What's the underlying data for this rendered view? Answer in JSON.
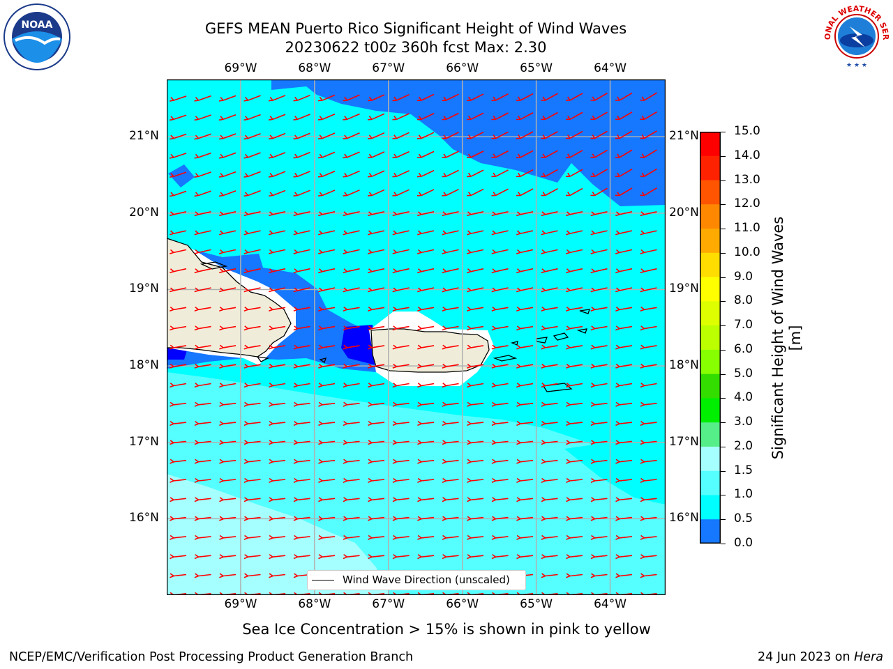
{
  "title": {
    "line1": "GEFS MEAN Puerto Rico Significant Height of Wind Waves",
    "line2": "20230622 t00z 360h fcst   Max: 2.30"
  },
  "logos": {
    "left": "noaa-logo",
    "left_text": "NOAA",
    "right": "national-weather-service-logo",
    "right_text": "NATIONAL WEATHER SERVICE"
  },
  "map": {
    "lon_labels": [
      "69°W",
      "68°W",
      "67°W",
      "66°W",
      "65°W",
      "64°W"
    ],
    "lat_labels": [
      "21°N",
      "20°N",
      "19°N",
      "18°N",
      "17°N",
      "16°N"
    ],
    "lon_range": [
      -70,
      -63.25
    ],
    "lat_range": [
      15,
      21.75
    ],
    "grid": true,
    "land_color": "#efedd9",
    "arrow_color": "#ff0000",
    "legend": {
      "label": "Wind Wave Direction (unscaled)",
      "placement": "lower-center"
    }
  },
  "colorbar": {
    "label": "Significant Height of Wind Waves [m]",
    "ticks": [
      "15.0",
      "14.0",
      "13.0",
      "12.0",
      "11.0",
      "10.0",
      "9.0",
      "8.0",
      "7.0",
      "6.0",
      "5.0",
      "4.0",
      "3.0",
      "2.0",
      "1.5",
      "1.0",
      "0.5",
      "0.0"
    ],
    "colors": [
      "#ff0000",
      "#ff2200",
      "#ff5500",
      "#ff8800",
      "#ffaa00",
      "#ffdd00",
      "#ffff00",
      "#ddff00",
      "#bbff00",
      "#88ff00",
      "#33dd00",
      "#00ee00",
      "#55ee88",
      "#a6ffff",
      "#55ffff",
      "#00ffff",
      "#1677ff",
      "#0000ff"
    ]
  },
  "sea_ice_note": "Sea Ice Concentration > 15% is shown in pink to yellow",
  "footer": {
    "left": "NCEP/EMC/Verification Post Processing Product Generation Branch",
    "right_prefix": "24 Jun 2023 on ",
    "right_host": "Hera"
  }
}
